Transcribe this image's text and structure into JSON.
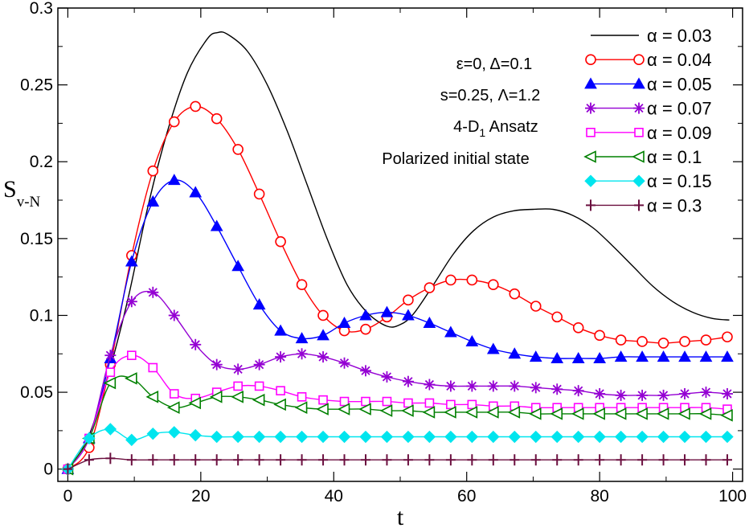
{
  "chart_data": {
    "type": "line",
    "title": "",
    "xlabel": "t",
    "ylabel_main": "S",
    "ylabel_sub": "v-N",
    "xlim": [
      -1.5,
      101.5
    ],
    "ylim": [
      -0.008,
      0.3
    ],
    "xticks": [
      0,
      20,
      40,
      60,
      80,
      100
    ],
    "xtick_labels": [
      "0",
      "20",
      "40",
      "60",
      "80",
      "100"
    ],
    "yticks": [
      0,
      0.05,
      0.1,
      0.15,
      0.2,
      0.25,
      0.3
    ],
    "ytick_labels": [
      "0",
      "0.05",
      "0.1",
      "0.15",
      "0.2",
      "0.25",
      "0.3"
    ],
    "legend_position": "top-right",
    "annotations": [
      "ε=0,  Δ=0.1",
      "s=0.25,  Λ=1.2",
      "4-D1 Ansatz",
      "Polarized initial state"
    ],
    "series": [
      {
        "name": "α = 0.03",
        "color": "#000000",
        "marker": "none",
        "x": [
          0,
          3,
          6,
          9,
          12,
          15,
          18,
          21,
          22.5,
          24,
          27,
          30,
          33,
          36,
          39,
          42,
          45,
          48,
          50,
          52,
          55,
          58,
          61,
          64,
          67,
          70,
          73,
          76,
          79,
          82,
          85,
          88,
          91,
          94,
          97,
          99.5
        ],
        "y": [
          0,
          0.02,
          0.06,
          0.11,
          0.17,
          0.22,
          0.258,
          0.28,
          0.284,
          0.283,
          0.272,
          0.25,
          0.22,
          0.185,
          0.15,
          0.12,
          0.102,
          0.093,
          0.094,
          0.101,
          0.12,
          0.14,
          0.155,
          0.164,
          0.168,
          0.169,
          0.169,
          0.165,
          0.157,
          0.145,
          0.132,
          0.119,
          0.109,
          0.102,
          0.098,
          0.097
        ]
      },
      {
        "name": "α = 0.04",
        "color": "#ff0000",
        "marker": "open-circle",
        "x": [
          0,
          3.2,
          6.4,
          9.6,
          12.8,
          16,
          19.2,
          22.4,
          25.6,
          28.8,
          32,
          35.2,
          38.4,
          41.6,
          44.8,
          48,
          51.2,
          54.4,
          57.6,
          60.8,
          64,
          67.2,
          70.4,
          73.6,
          76.8,
          80,
          83.2,
          86.4,
          89.6,
          92.8,
          96,
          99.2
        ],
        "y": [
          0,
          0.014,
          0.068,
          0.139,
          0.194,
          0.226,
          0.236,
          0.228,
          0.208,
          0.179,
          0.148,
          0.12,
          0.1,
          0.09,
          0.091,
          0.099,
          0.11,
          0.118,
          0.123,
          0.123,
          0.12,
          0.114,
          0.106,
          0.099,
          0.092,
          0.087,
          0.084,
          0.083,
          0.082,
          0.083,
          0.084,
          0.086
        ]
      },
      {
        "name": "α = 0.05",
        "color": "#0000ff",
        "marker": "filled-triangle",
        "x": [
          0,
          3.2,
          6.4,
          9.6,
          12.8,
          16,
          19.2,
          22.4,
          25.6,
          28.8,
          32,
          35.2,
          38.4,
          41.6,
          44.8,
          48,
          51.2,
          54.4,
          57.6,
          60.8,
          64,
          67.2,
          70.4,
          73.6,
          76.8,
          80,
          83.2,
          86.4,
          89.6,
          92.8,
          96,
          99.2
        ],
        "y": [
          0,
          0.02,
          0.072,
          0.135,
          0.174,
          0.188,
          0.18,
          0.158,
          0.132,
          0.107,
          0.09,
          0.085,
          0.087,
          0.095,
          0.1,
          0.102,
          0.1,
          0.095,
          0.089,
          0.083,
          0.078,
          0.075,
          0.073,
          0.072,
          0.072,
          0.072,
          0.073,
          0.073,
          0.073,
          0.073,
          0.073,
          0.073
        ]
      },
      {
        "name": "α = 0.07",
        "color": "#9400d3",
        "marker": "star",
        "x": [
          0,
          3.2,
          6.4,
          9.6,
          12.8,
          16,
          19.2,
          22.4,
          25.6,
          28.8,
          32,
          35.2,
          38.4,
          41.6,
          44.8,
          48,
          51.2,
          54.4,
          57.6,
          60.8,
          64,
          67.2,
          70.4,
          73.6,
          76.8,
          80,
          83.2,
          86.4,
          89.6,
          92.8,
          96,
          99.2
        ],
        "y": [
          0,
          0.02,
          0.074,
          0.109,
          0.115,
          0.1,
          0.081,
          0.068,
          0.065,
          0.068,
          0.073,
          0.075,
          0.073,
          0.069,
          0.064,
          0.06,
          0.057,
          0.055,
          0.054,
          0.054,
          0.054,
          0.054,
          0.053,
          0.052,
          0.051,
          0.049,
          0.048,
          0.048,
          0.048,
          0.049,
          0.05,
          0.049
        ]
      },
      {
        "name": "α = 0.09",
        "color": "#ff00ff",
        "marker": "open-square",
        "x": [
          0,
          3.2,
          6.4,
          9.6,
          12.8,
          16,
          19.2,
          22.4,
          25.6,
          28.8,
          32,
          35.2,
          38.4,
          41.6,
          44.8,
          48,
          51.2,
          54.4,
          57.6,
          60.8,
          64,
          67.2,
          70.4,
          73.6,
          76.8,
          80,
          83.2,
          86.4,
          89.6,
          92.8,
          96,
          99.2
        ],
        "y": [
          0,
          0.02,
          0.063,
          0.074,
          0.066,
          0.049,
          0.046,
          0.05,
          0.054,
          0.054,
          0.051,
          0.047,
          0.045,
          0.044,
          0.044,
          0.044,
          0.043,
          0.043,
          0.042,
          0.042,
          0.041,
          0.041,
          0.04,
          0.04,
          0.04,
          0.04,
          0.04,
          0.04,
          0.04,
          0.04,
          0.04,
          0.039
        ]
      },
      {
        "name": "α = 0.1",
        "color": "#008000",
        "marker": "open-triangle-left",
        "x": [
          0,
          3.2,
          6.4,
          9.6,
          12.8,
          16,
          19.2,
          22.4,
          25.6,
          28.8,
          32,
          35.2,
          38.4,
          41.6,
          44.8,
          48,
          51.2,
          54.4,
          57.6,
          60.8,
          64,
          67.2,
          70.4,
          73.6,
          76.8,
          80,
          83.2,
          86.4,
          89.6,
          92.8,
          96,
          99.2
        ],
        "y": [
          0,
          0.02,
          0.056,
          0.059,
          0.047,
          0.04,
          0.043,
          0.047,
          0.047,
          0.045,
          0.042,
          0.04,
          0.039,
          0.039,
          0.039,
          0.038,
          0.038,
          0.037,
          0.037,
          0.037,
          0.037,
          0.037,
          0.036,
          0.036,
          0.036,
          0.036,
          0.036,
          0.036,
          0.036,
          0.036,
          0.036,
          0.035
        ]
      },
      {
        "name": "α = 0.15",
        "color": "#00e5ee",
        "marker": "filled-diamond",
        "x": [
          0,
          3.2,
          6.4,
          9.6,
          12.8,
          16,
          19.2,
          22.4,
          25.6,
          28.8,
          32,
          35.2,
          38.4,
          41.6,
          44.8,
          48,
          51.2,
          54.4,
          57.6,
          60.8,
          64,
          67.2,
          70.4,
          73.6,
          76.8,
          80,
          83.2,
          86.4,
          89.6,
          92.8,
          96,
          99.2
        ],
        "y": [
          0,
          0.02,
          0.026,
          0.019,
          0.023,
          0.024,
          0.022,
          0.021,
          0.021,
          0.021,
          0.021,
          0.021,
          0.021,
          0.021,
          0.021,
          0.021,
          0.021,
          0.021,
          0.021,
          0.021,
          0.021,
          0.021,
          0.021,
          0.021,
          0.021,
          0.021,
          0.021,
          0.021,
          0.021,
          0.021,
          0.021,
          0.021
        ]
      },
      {
        "name": "α = 0.3",
        "color": "#6b0f3f",
        "marker": "plus",
        "x": [
          0,
          3.2,
          6.4,
          9.6,
          12.8,
          16,
          19.2,
          22.4,
          25.6,
          28.8,
          32,
          35.2,
          38.4,
          41.6,
          44.8,
          48,
          51.2,
          54.4,
          57.6,
          60.8,
          64,
          67.2,
          70.4,
          73.6,
          76.8,
          80,
          83.2,
          86.4,
          89.6,
          92.8,
          96,
          99.2
        ],
        "y": [
          0,
          0.006,
          0.007,
          0.006,
          0.006,
          0.006,
          0.006,
          0.006,
          0.006,
          0.006,
          0.006,
          0.006,
          0.006,
          0.006,
          0.006,
          0.006,
          0.006,
          0.006,
          0.006,
          0.006,
          0.006,
          0.006,
          0.006,
          0.006,
          0.006,
          0.006,
          0.006,
          0.006,
          0.006,
          0.006,
          0.006,
          0.006
        ]
      }
    ]
  }
}
